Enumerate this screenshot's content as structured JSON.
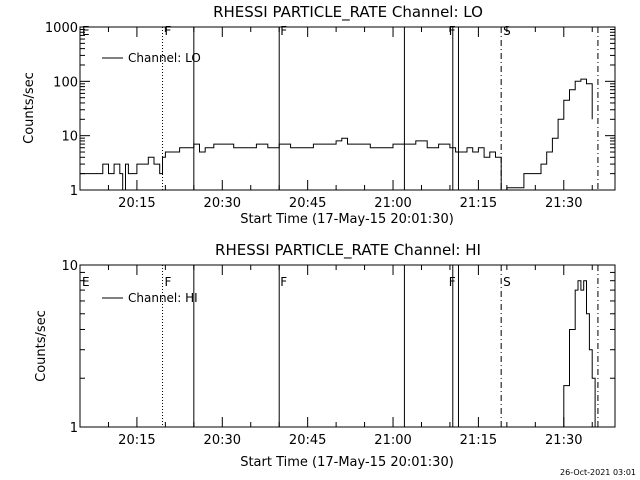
{
  "footer": {
    "timestamp": "26-Oct-2021 03:01"
  },
  "chart_data": [
    {
      "type": "line",
      "title": "RHESSI PARTICLE_RATE Channel: LO",
      "xlabel": "Start Time (17-May-15 20:01:30)",
      "ylabel": "Counts/sec",
      "yscale": "log",
      "ylim": [
        1,
        1000
      ],
      "xlim_minutes_of_day": [
        "20:05:00",
        "21:39:00"
      ],
      "y_tick_labels": [
        "1",
        "10",
        "100",
        "1000"
      ],
      "x_tick_labels": [
        "20:15",
        "20:30",
        "20:45",
        "21:00",
        "21:15",
        "21:30"
      ],
      "legend": {
        "label": "Channel: LO",
        "placement": "top-left"
      },
      "series": [
        {
          "name": "Channel: LO",
          "x": [
            "20:05:00",
            "20:08:30",
            "20:09:00",
            "20:10:00",
            "20:11:00",
            "20:12:00",
            "20:12:30",
            "20:13:00",
            "20:13:30",
            "20:14:30",
            "20:15:00",
            "20:16:00",
            "20:17:00",
            "20:18:00",
            "20:19:00",
            "20:19:30",
            "20:20:00",
            "20:21:00",
            "20:22:30",
            "20:24:00",
            "20:25:00",
            "20:26:00",
            "20:27:00",
            "20:28:30",
            "20:30:00",
            "20:32:00",
            "20:34:00",
            "20:36:00",
            "20:38:00",
            "20:40:00",
            "20:42:00",
            "20:44:00",
            "20:46:00",
            "20:48:00",
            "20:50:00",
            "20:51:00",
            "20:52:00",
            "20:54:00",
            "20:56:00",
            "20:58:00",
            "21:00:00",
            "21:02:00",
            "21:04:00",
            "21:06:00",
            "21:08:00",
            "21:10:00",
            "21:11:00",
            "21:12:00",
            "21:13:00",
            "21:14:00",
            "21:15:00",
            "21:16:00",
            "21:17:00",
            "21:18:00",
            "21:19:00",
            "21:20:00",
            "21:23:00",
            "21:24:00",
            "21:25:00",
            "21:26:00",
            "21:27:00",
            "21:28:00",
            "21:29:00",
            "21:30:00",
            "21:31:00",
            "21:32:00",
            "21:33:00",
            "21:34:00",
            "21:35:00"
          ],
          "y": [
            2,
            2,
            3,
            2,
            3,
            2,
            1,
            3,
            2,
            2,
            3,
            3,
            4,
            3,
            2,
            4,
            5,
            5,
            6,
            6,
            7,
            5,
            6,
            7,
            7,
            6,
            6,
            7,
            6,
            7,
            6,
            6,
            7,
            7,
            8,
            9,
            7,
            7,
            6,
            6,
            7,
            7,
            8,
            6,
            7,
            6,
            5,
            5,
            6,
            5,
            6,
            4,
            5,
            4,
            1,
            1.1,
            2,
            2,
            2,
            3,
            5,
            9,
            20,
            45,
            70,
            100,
            110,
            90,
            20
          ]
        }
      ],
      "annotations": {
        "letters": [
          "E",
          "F",
          "F",
          "F",
          "S"
        ],
        "solid_vlines": [
          "20:25:00",
          "20:40:00",
          "21:02:00",
          "21:10:30",
          "21:11:30"
        ],
        "dotted_vlines": [
          "20:19:30"
        ],
        "dashdot_vlines": [
          "21:19:00",
          "21:36:00"
        ]
      }
    },
    {
      "type": "line",
      "title": "RHESSI PARTICLE_RATE Channel: HI",
      "xlabel": "Start Time (17-May-15 20:01:30)",
      "ylabel": "Counts/sec",
      "yscale": "log",
      "ylim": [
        1,
        10
      ],
      "xlim_minutes_of_day": [
        "20:05:00",
        "21:39:00"
      ],
      "y_tick_labels": [
        "1",
        "10"
      ],
      "x_tick_labels": [
        "20:15",
        "20:30",
        "20:45",
        "21:00",
        "21:15",
        "21:30"
      ],
      "legend": {
        "label": "Channel: HI",
        "placement": "top-left"
      },
      "series": [
        {
          "name": "Channel: HI",
          "x": [
            "21:29:30",
            "21:30:00",
            "21:31:00",
            "21:32:00",
            "21:32:30",
            "21:33:00",
            "21:33:30",
            "21:34:00",
            "21:34:30",
            "21:35:00",
            "21:35:30"
          ],
          "y": [
            1,
            1.8,
            4,
            7,
            8,
            7,
            8,
            5,
            3,
            2,
            1
          ]
        }
      ],
      "annotations": {
        "letters": [
          "E",
          "F",
          "F",
          "F",
          "S"
        ],
        "solid_vlines": [
          "20:25:00",
          "20:40:00",
          "21:02:00",
          "21:10:30",
          "21:11:30"
        ],
        "dotted_vlines": [
          "20:19:30"
        ],
        "dashdot_vlines": [
          "21:19:00",
          "21:36:00"
        ]
      }
    }
  ]
}
